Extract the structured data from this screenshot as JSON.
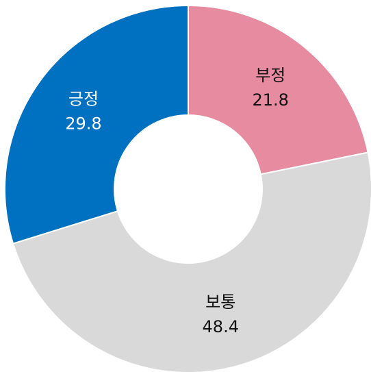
{
  "chart_data": {
    "type": "donut",
    "categories": [
      "부정",
      "보통",
      "긍정"
    ],
    "values": [
      21.8,
      48.4,
      29.8
    ],
    "colors": [
      "#e68ba0",
      "#d9d9d9",
      "#0070c0"
    ],
    "label_colors": [
      "#111111",
      "#111111",
      "#ffffff"
    ]
  }
}
